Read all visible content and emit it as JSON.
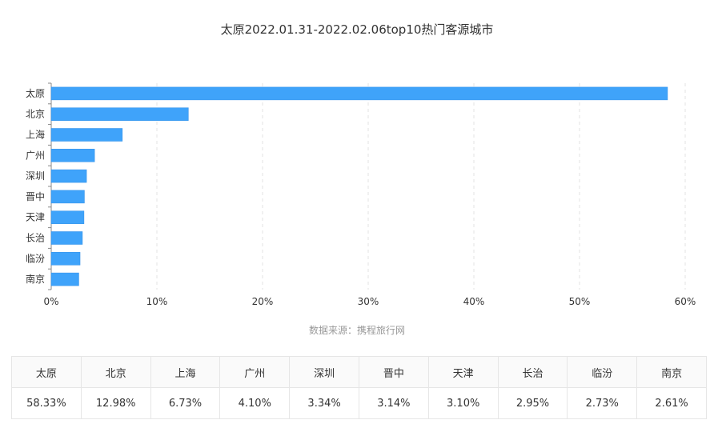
{
  "title": "太原2022.01.31-2022.02.06top10热门客源城市",
  "source": "数据来源：携程旅行网",
  "colors": {
    "bar": "#3fa3fa",
    "bar_stroke": "#2f8ee8",
    "grid": "#e3e3e3",
    "axis": "#888888"
  },
  "chart_data": {
    "type": "bar",
    "orientation": "horizontal",
    "categories": [
      "太原",
      "北京",
      "上海",
      "广州",
      "深圳",
      "晋中",
      "天津",
      "长治",
      "临汾",
      "南京"
    ],
    "values": [
      58.33,
      12.98,
      6.73,
      4.1,
      3.34,
      3.14,
      3.1,
      2.95,
      2.73,
      2.61
    ],
    "xlim": [
      0,
      60
    ],
    "xticks": [
      0,
      10,
      20,
      30,
      40,
      50,
      60
    ],
    "xtick_labels": [
      "0%",
      "10%",
      "20%",
      "30%",
      "40%",
      "50%",
      "60%"
    ],
    "grid": "vertical-dashed"
  },
  "table": {
    "headers": [
      "太原",
      "北京",
      "上海",
      "广州",
      "深圳",
      "晋中",
      "天津",
      "长治",
      "临汾",
      "南京"
    ],
    "values": [
      "58.33%",
      "12.98%",
      "6.73%",
      "4.10%",
      "3.34%",
      "3.14%",
      "3.10%",
      "2.95%",
      "2.73%",
      "2.61%"
    ]
  }
}
